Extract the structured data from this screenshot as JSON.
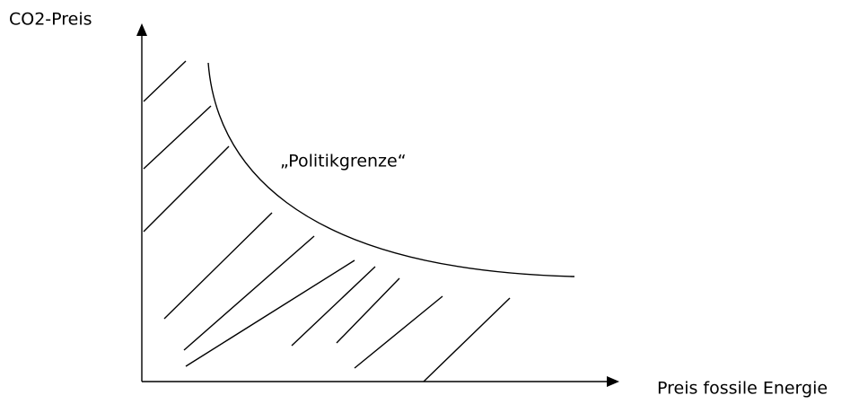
{
  "labels": {
    "y_axis": "CO2-Preis",
    "curve": "„Politikgrenze“",
    "x_axis": "Preis fossile Energie"
  }
}
